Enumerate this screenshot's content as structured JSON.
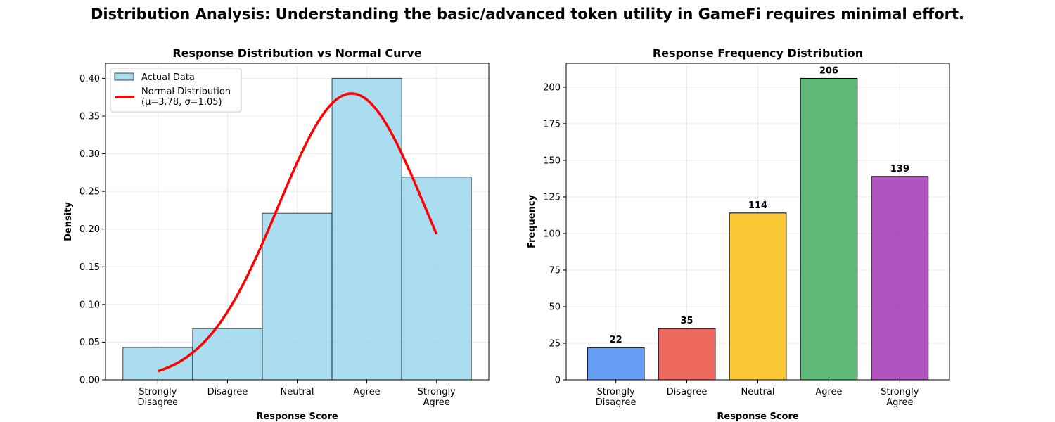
{
  "title": "Distribution Analysis: Understanding the basic/advanced token utility in GameFi requires minimal effort.",
  "chart_data": [
    {
      "type": "bar",
      "title": "Response Distribution vs Normal Curve",
      "xlabel": "Response Score",
      "ylabel": "Density",
      "categories": [
        "Strongly\nDisagree",
        "Disagree",
        "Neutral",
        "Agree",
        "Strongly\nAgree"
      ],
      "x": [
        1,
        2,
        3,
        4,
        5
      ],
      "xlim": [
        0.25,
        5.75
      ],
      "ylim": [
        0,
        0.42
      ],
      "yticks": [
        0.0,
        0.05,
        0.1,
        0.15,
        0.2,
        0.25,
        0.3,
        0.35,
        0.4
      ],
      "ytick_labels": [
        "0.00",
        "0.05",
        "0.10",
        "0.15",
        "0.20",
        "0.25",
        "0.30",
        "0.35",
        "0.40"
      ],
      "grid": true,
      "legend_position": "upper-left",
      "series": [
        {
          "name": "Actual Data",
          "kind": "histogram",
          "values": [
            0.043,
            0.068,
            0.221,
            0.4,
            0.269
          ],
          "color": "#87ceeb"
        },
        {
          "name": "Normal Distribution\n(μ=3.78, σ=1.05)",
          "kind": "curve",
          "mu": 3.78,
          "sigma": 1.05,
          "x_range": [
            1,
            5
          ],
          "color": "#ff0000"
        }
      ]
    },
    {
      "type": "bar",
      "title": "Response Frequency Distribution",
      "xlabel": "Response Score",
      "ylabel": "Frequency",
      "categories": [
        "Strongly\nDisagree",
        "Disagree",
        "Neutral",
        "Agree",
        "Strongly\nAgree"
      ],
      "values": [
        22,
        35,
        114,
        206,
        139
      ],
      "value_labels": [
        "22",
        "35",
        "114",
        "206",
        "139"
      ],
      "colors": [
        "#4285f4",
        "#ea4335",
        "#fbbc04",
        "#34a853",
        "#9c27b0"
      ],
      "ylim": [
        0,
        216.3
      ],
      "yticks": [
        0,
        25,
        50,
        75,
        100,
        125,
        150,
        175,
        200
      ],
      "ytick_labels": [
        "0",
        "25",
        "50",
        "75",
        "100",
        "125",
        "150",
        "175",
        "200"
      ],
      "grid": true
    }
  ]
}
